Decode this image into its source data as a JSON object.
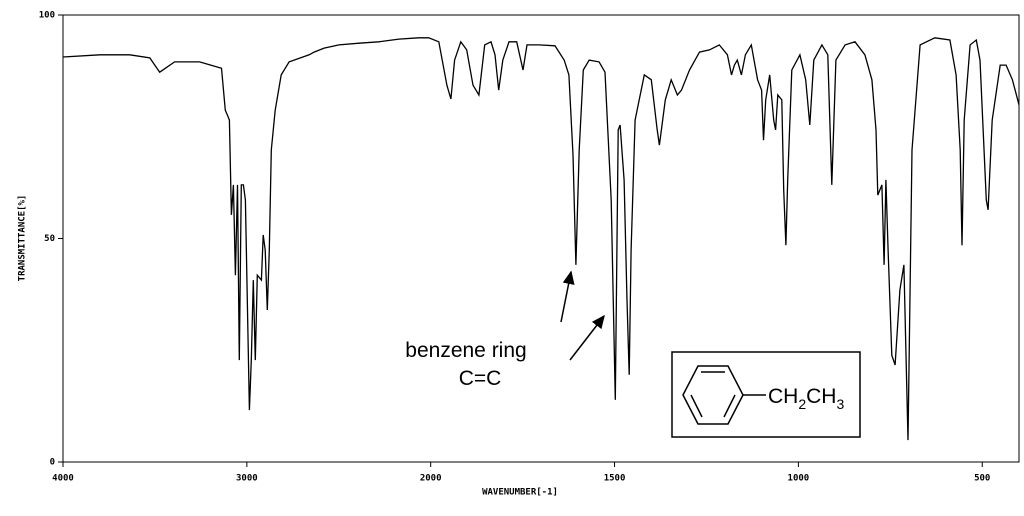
{
  "chart_data": {
    "type": "line",
    "ylabel": "TRANSMITTANCE[%]",
    "xlabel": "WAVENUMBER[-1]",
    "annotations": [
      "benzene ring",
      "C=C"
    ],
    "structure_formula": [
      "CH",
      "2",
      "CH",
      "3"
    ],
    "color": "#000000",
    "xlim": [
      4000,
      400
    ],
    "xticks": [
      4000,
      3000,
      2000,
      1500,
      1000,
      500
    ],
    "ylim": [
      0,
      100
    ],
    "yticks": [
      0,
      50,
      100
    ],
    "x": [
      4000,
      3799,
      3637,
      3528,
      3474,
      3393,
      3257,
      3138,
      3117,
      3106,
      3095,
      3084,
      3073,
      3062,
      3051,
      3041,
      3030,
      3019,
      3008,
      2986,
      2976,
      2965,
      2954,
      2943,
      2921,
      2911,
      2900,
      2889,
      2878,
      2867,
      2846,
      2813,
      2770,
      2661,
      2634,
      2580,
      2499,
      2390,
      2282,
      2173,
      2065,
      2011,
      1978,
      1956,
      1945,
      1935,
      1918,
      1902,
      1885,
      1869,
      1853,
      1836,
      1825,
      1815,
      1804,
      1787,
      1766,
      1749,
      1738,
      1705,
      1662,
      1637,
      1624,
      1613,
      1605,
      1596,
      1585,
      1569,
      1542,
      1526,
      1509,
      1498,
      1490,
      1485,
      1474,
      1466,
      1460,
      1455,
      1444,
      1419,
      1400,
      1384,
      1378,
      1362,
      1346,
      1329,
      1318,
      1296,
      1269,
      1242,
      1215,
      1193,
      1182,
      1174,
      1166,
      1155,
      1144,
      1128,
      1111,
      1100,
      1095,
      1089,
      1078,
      1067,
      1062,
      1056,
      1045,
      1040,
      1034,
      1029,
      1018,
      996,
      980,
      969,
      958,
      936,
      920,
      909,
      898,
      873,
      846,
      819,
      800,
      789,
      784,
      773,
      767,
      762,
      756,
      746,
      737,
      724,
      713,
      702,
      691,
      669,
      629,
      588,
      571,
      560,
      555,
      549,
      533,
      516,
      506,
      489,
      484,
      473,
      451,
      435,
      418,
      400
    ],
    "values": [
      90.6,
      91.1,
      91.1,
      90.4,
      87.2,
      89.5,
      89.5,
      88.1,
      78.7,
      77.6,
      76.5,
      55.3,
      62.0,
      41.8,
      62.0,
      22.8,
      62.0,
      62.0,
      58.6,
      11.6,
      22.8,
      40.7,
      22.8,
      41.8,
      40.7,
      50.8,
      47.4,
      34.0,
      47.4,
      69.8,
      78.7,
      86.6,
      89.5,
      91.1,
      91.7,
      92.6,
      93.3,
      93.7,
      94.0,
      94.6,
      94.9,
      94.9,
      94.0,
      84.3,
      81.2,
      89.9,
      94.0,
      92.2,
      84.3,
      82.1,
      93.3,
      94.0,
      91.1,
      83.2,
      89.9,
      94.0,
      94.0,
      87.7,
      93.3,
      93.3,
      93.1,
      89.9,
      86.6,
      68.7,
      44.1,
      69.8,
      87.7,
      89.9,
      89.5,
      87.2,
      58.6,
      13.9,
      74.3,
      75.4,
      63.1,
      36.2,
      19.5,
      47.4,
      76.5,
      86.6,
      85.5,
      74.3,
      70.9,
      81.0,
      85.5,
      82.1,
      83.2,
      87.7,
      91.7,
      92.2,
      93.3,
      91.1,
      86.6,
      88.8,
      89.9,
      86.6,
      91.1,
      93.3,
      85.5,
      83.2,
      72.0,
      81.0,
      86.6,
      76.5,
      74.3,
      82.1,
      81.0,
      60.9,
      48.5,
      63.1,
      87.7,
      91.1,
      85.5,
      75.4,
      89.9,
      93.3,
      91.1,
      62.0,
      89.9,
      93.3,
      94.0,
      91.1,
      85.5,
      74.3,
      59.7,
      62.0,
      44.1,
      63.1,
      47.4,
      23.9,
      21.7,
      38.5,
      44.1,
      4.9,
      69.8,
      93.3,
      94.9,
      94.4,
      86.6,
      69.8,
      48.5,
      76.5,
      93.3,
      94.4,
      89.9,
      58.6,
      56.4,
      76.5,
      88.8,
      88.8,
      85.5,
      79.9
    ]
  }
}
